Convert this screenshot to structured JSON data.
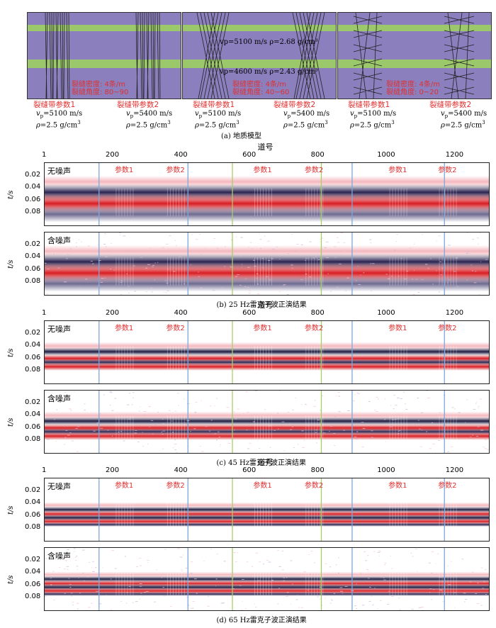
{
  "geo_model": {
    "models": [
      {
        "zone1_label": "裂缝带参数1",
        "zone2_label": "裂缝带参数2",
        "inner_label1": "裂缝密度: 4条/m",
        "inner_label2": "裂缝角度: 80~90"
      },
      {
        "zone1_label": "裂缝带参数1",
        "zone2_label": "裂缝带参数2",
        "inner_label1": "裂缝密度: 4条/m",
        "inner_label2": "裂缝角度: 40~60"
      },
      {
        "zone1_label": "裂缝带参数1",
        "zone2_label": "裂缝带参数2",
        "inner_label1": "裂缝密度: 4条/m",
        "inner_label2": "裂缝角度: 0~20"
      }
    ],
    "layer_params": {
      "upper": "vp=5100 m/s ρ=2.68 g/cm³",
      "lower": "vp=4600 m/s ρ=2.43 g/cm³"
    },
    "zone_params": {
      "zone1_vp": "=5100 m/s",
      "zone2_vp": "=5400 m/s",
      "rho": "=2.5 g/cm",
      "rho_exp": "3"
    },
    "caption": "(a) 地质模型"
  },
  "sections": [
    {
      "caption": "(b) 25 Hz雷克子波正演结果",
      "freq": 25,
      "xaxis_title": "道号",
      "panels": [
        "无噪声",
        "含噪声"
      ]
    },
    {
      "caption": "(c) 45 Hz雷克子波正演结果",
      "freq": 45,
      "xaxis_title": "道号",
      "panels": [
        "无噪声",
        "含噪声"
      ]
    },
    {
      "caption": "(d) 65 Hz雷克子波正演结果",
      "freq": 65,
      "xaxis_title": "道号",
      "panels": [
        "无噪声",
        "含噪声"
      ]
    }
  ],
  "chart_data": {
    "type": "heatmap",
    "xlabel": "道号",
    "ylabel": "t/s",
    "xlim": [
      1,
      1300
    ],
    "ylim": [
      0.1,
      0.0
    ],
    "x_ticks": [
      "1",
      "200",
      "400",
      "600",
      "800",
      "1000",
      "1200"
    ],
    "y_ticks": [
      "0.02",
      "0.04",
      "0.06",
      "0.08"
    ],
    "zone_labels": [
      "参数1",
      "参数2",
      "参数1",
      "参数2",
      "参数1",
      "参数2"
    ],
    "blue_lines_trace": [
      160,
      420,
      900,
      1170
    ],
    "green_lines_trace": [
      550,
      810
    ]
  }
}
